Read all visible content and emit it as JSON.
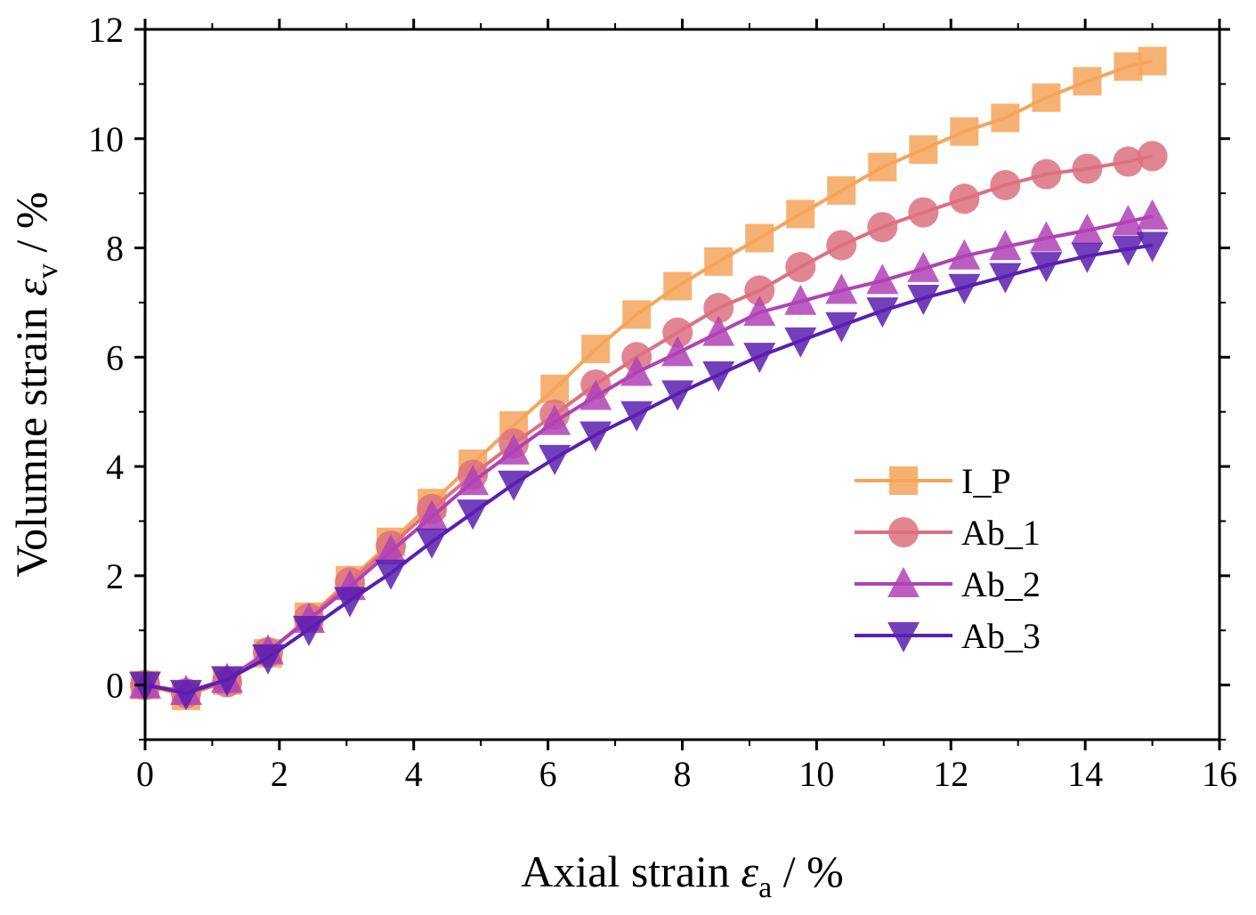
{
  "chart_data": {
    "type": "line",
    "title": "",
    "xlabel": {
      "main": "Axial strain ",
      "symbol": "ε",
      "subscript": "a",
      "unit": " / %"
    },
    "ylabel": {
      "main": "Volumne strain ",
      "symbol": "ε",
      "subscript": "v",
      "unit": " / %"
    },
    "xlim": [
      0,
      16
    ],
    "ylim": [
      -1,
      12
    ],
    "xticks": [
      0,
      2,
      4,
      6,
      8,
      10,
      12,
      14,
      16
    ],
    "yticks": [
      0,
      2,
      4,
      6,
      8,
      10,
      12
    ],
    "xtick_labels": [
      "0",
      "2",
      "4",
      "6",
      "8",
      "10",
      "12",
      "14",
      "16"
    ],
    "ytick_labels": [
      "0",
      "2",
      "4",
      "6",
      "8",
      "10",
      "12"
    ],
    "grid": false,
    "legend_position": "right",
    "x": [
      0,
      0.61,
      1.22,
      1.83,
      2.44,
      3.05,
      3.66,
      4.27,
      4.88,
      5.49,
      6.1,
      6.71,
      7.32,
      7.93,
      8.54,
      9.15,
      9.76,
      10.37,
      10.98,
      11.59,
      12.2,
      12.81,
      13.42,
      14.03,
      14.64,
      15.0
    ],
    "series": [
      {
        "name": "I_P",
        "color": "#F5A55A",
        "marker": "square",
        "values": [
          0,
          -0.2,
          0.08,
          0.58,
          1.25,
          1.92,
          2.62,
          3.33,
          4.05,
          4.75,
          5.42,
          6.15,
          6.78,
          7.3,
          7.75,
          8.18,
          8.62,
          9.05,
          9.48,
          9.8,
          10.13,
          10.38,
          10.75,
          11.05,
          11.32,
          11.42
        ]
      },
      {
        "name": "Ab_1",
        "color": "#DD7080",
        "marker": "circle",
        "values": [
          0,
          -0.15,
          0.05,
          0.6,
          1.22,
          1.88,
          2.55,
          3.22,
          3.85,
          4.42,
          4.95,
          5.5,
          6.0,
          6.45,
          6.9,
          7.22,
          7.65,
          8.05,
          8.38,
          8.65,
          8.9,
          9.15,
          9.35,
          9.45,
          9.58,
          9.68
        ]
      },
      {
        "name": "Ab_2",
        "color": "#B042B6",
        "marker": "triangle-up",
        "values": [
          0,
          -0.12,
          0.1,
          0.62,
          1.2,
          1.8,
          2.45,
          3.08,
          3.72,
          4.28,
          4.82,
          5.28,
          5.72,
          6.08,
          6.45,
          6.82,
          7.02,
          7.22,
          7.4,
          7.62,
          7.85,
          8.02,
          8.18,
          8.32,
          8.48,
          8.58
        ]
      },
      {
        "name": "Ab_3",
        "color": "#5A1FB0",
        "marker": "triangle-down",
        "values": [
          0,
          -0.15,
          0.1,
          0.5,
          1.02,
          1.55,
          2.05,
          2.62,
          3.15,
          3.68,
          4.15,
          4.58,
          4.95,
          5.33,
          5.68,
          6.02,
          6.3,
          6.58,
          6.85,
          7.08,
          7.28,
          7.48,
          7.68,
          7.85,
          7.98,
          8.05
        ]
      }
    ]
  }
}
